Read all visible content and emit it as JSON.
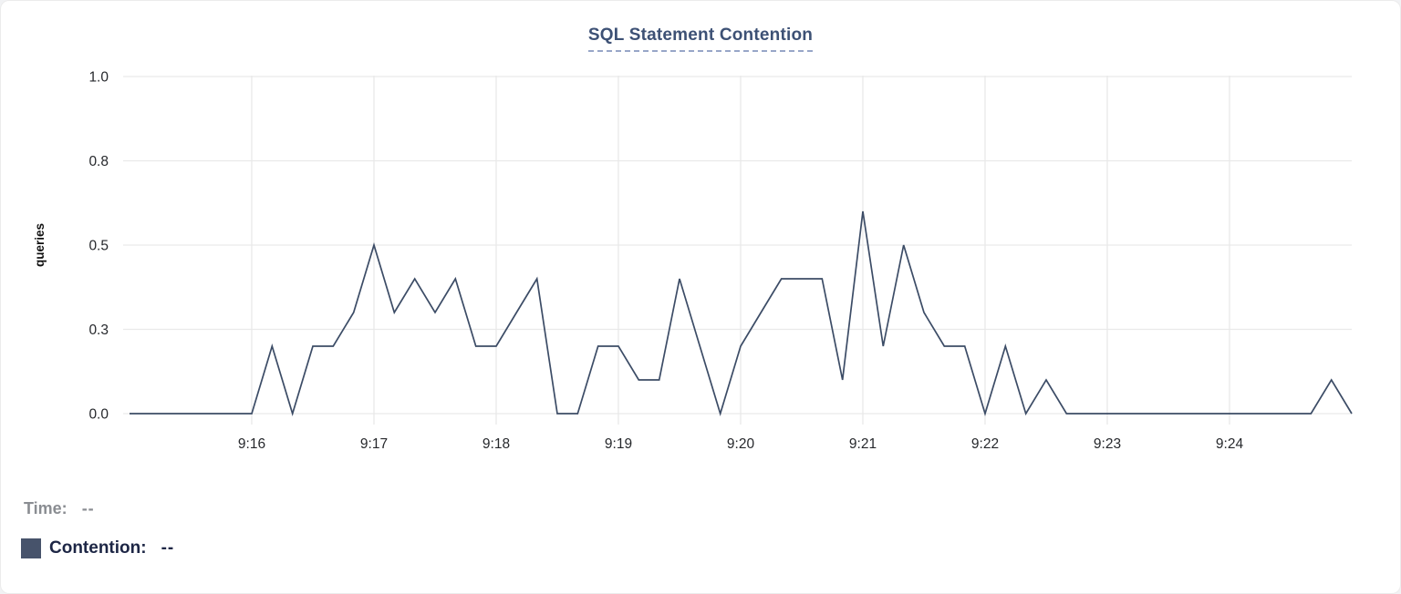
{
  "page": {
    "background": "#f1f2f4",
    "card_background": "#ffffff"
  },
  "chart": {
    "title": "SQL Statement Contention",
    "title_color": "#3d5175",
    "underline_color": "#98a6c8"
  },
  "legend": {
    "time_label": "Time:",
    "time_value": "--",
    "time_color": "#8a8d92",
    "contention_label": "Contention:",
    "contention_value": "--",
    "contention_color": "#1d2645",
    "swatch_color": "#47536b"
  },
  "chart_data": {
    "type": "line",
    "title": "SQL Statement Contention",
    "xlabel": "",
    "ylabel": "queries",
    "ylim": [
      0,
      1
    ],
    "grid": true,
    "grid_color": "#e9e9e9",
    "tick_color": "#26282c",
    "legend_position": "bottom-left",
    "x_start": "9:15:00",
    "x_end": "9:25:00",
    "x_interval_seconds": 10,
    "x_tick_labels": [
      "9:16",
      "9:17",
      "9:18",
      "9:19",
      "9:20",
      "9:21",
      "9:22",
      "9:23",
      "9:24"
    ],
    "y_tick_values": [
      0,
      0.25,
      0.5,
      0.75,
      1.0
    ],
    "y_tick_labels": [
      "0.0",
      "0.3",
      "0.5",
      "0.8",
      "1.0"
    ],
    "series": [
      {
        "name": "Contention",
        "unit": "queries",
        "color": "#3c4c66",
        "values": [
          0,
          0,
          0,
          0,
          0,
          0,
          0,
          0.2,
          0,
          0.2,
          0.2,
          0.3,
          0.5,
          0.3,
          0.4,
          0.3,
          0.4,
          0.2,
          0.2,
          0.3,
          0.4,
          0,
          0,
          0.2,
          0.2,
          0.1,
          0.1,
          0.4,
          0.2,
          0,
          0.2,
          0.3,
          0.4,
          0.4,
          0.4,
          0.1,
          0.6,
          0.2,
          0.5,
          0.3,
          0.2,
          0.2,
          0,
          0.2,
          0,
          0.1,
          0,
          0,
          0,
          0,
          0,
          0,
          0,
          0,
          0,
          0,
          0,
          0,
          0,
          0.1,
          0
        ]
      }
    ]
  }
}
